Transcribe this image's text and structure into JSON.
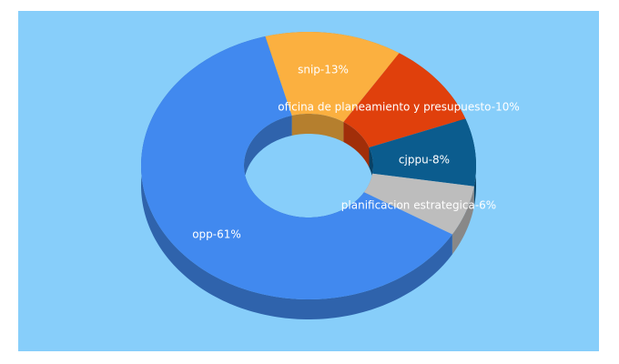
{
  "chart_data": {
    "type": "donut3d",
    "values": [
      13,
      10,
      8,
      6,
      61
    ],
    "value_labels": [
      "snip-13%",
      "oficina de planeamiento y presupuesto-10%",
      "cjppu-8%",
      "planificacion estrategica-6%",
      "opp-61%"
    ],
    "colors": [
      "#fbb040",
      "#e0400c",
      "#0b5c8e",
      "#bdbdbd",
      "#4189ef"
    ]
  }
}
